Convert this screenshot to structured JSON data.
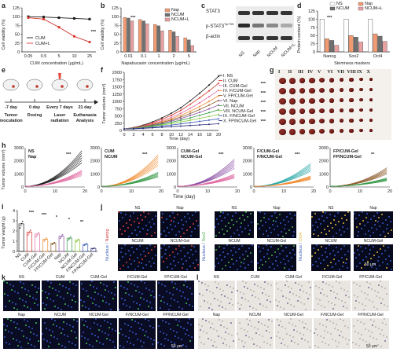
{
  "panel_letters": {
    "a": "a",
    "b": "b",
    "c": "c",
    "d": "d",
    "e": "e",
    "f": "f",
    "g": "g",
    "h": "h",
    "i": "i",
    "j": "j",
    "k": "k",
    "l": "l"
  },
  "colors": {
    "black": "#1a1a1a",
    "red": "#d9342b",
    "nap": "#f29a72",
    "ncum": "#6f6f6f",
    "ncuml": "#e8a0a0",
    "ns": "#ffffff",
    "green": "#3a9a4a",
    "teal": "#2aa7a7",
    "purple": "#8a4fa3",
    "blue": "#3b5bb5",
    "pink": "#e06aa0",
    "orange": "#f08a2e",
    "lightgreen": "#8cc63f",
    "navy": "#2b2b7a",
    "brown": "#8b5a2b"
  },
  "panel_a": {
    "chart_data": {
      "type": "line",
      "xlabel": "CUM concentration (μg/mL)",
      "ylabel": "Cell viability (%)",
      "categories": [
        "0.05",
        "0.5",
        "5",
        "10",
        "25"
      ],
      "ylim": [
        0,
        125
      ],
      "yticks": [
        "0",
        "25",
        "50",
        "75",
        "100",
        "125"
      ],
      "series": [
        {
          "name": "CUM",
          "values": [
            100,
            99,
            97,
            95,
            93
          ]
        },
        {
          "name": "CUM+L",
          "values": [
            97,
            93,
            70,
            44,
            28
          ]
        }
      ],
      "legend": "bottom-left",
      "significance": "***"
    }
  },
  "panel_b": {
    "chart_data": {
      "type": "bar",
      "xlabel": "Napabucasin concentration (μg/mL)",
      "ylabel": "Cell viability (%)",
      "categories": [
        "0.01",
        "0.1",
        "1",
        "2",
        "5"
      ],
      "ylim": [
        0,
        125
      ],
      "yticks": [
        "0",
        "25",
        "50",
        "75",
        "100",
        "125"
      ],
      "series": [
        {
          "name": "Nap",
          "values": [
            98,
            92,
            78,
            62,
            40
          ]
        },
        {
          "name": "NCUM",
          "values": [
            96,
            88,
            74,
            57,
            34
          ]
        },
        {
          "name": "NCUM+L",
          "values": [
            88,
            80,
            60,
            44,
            18
          ]
        }
      ],
      "legend": "top-right",
      "significance": "***"
    }
  },
  "panel_c": {
    "rows": [
      "STAT3",
      "p-STAT3",
      "β-actin"
    ],
    "row2_sup": "Tyr705",
    "cols": [
      "NS",
      "Nap",
      "NCUM",
      "NCUM+L"
    ]
  },
  "panel_d": {
    "chart_data": {
      "type": "bar",
      "xlabel": "Stemness markers",
      "ylabel": "Protein content (%)",
      "categories": [
        "Nanog",
        "Sox2",
        "Oct4"
      ],
      "ylim": [
        0,
        125
      ],
      "yticks": [
        "0",
        "25",
        "50",
        "75",
        "100",
        "125"
      ],
      "series": [
        {
          "name": "NS",
          "values": [
            100,
            100,
            100
          ]
        },
        {
          "name": "Nap",
          "values": [
            40,
            50,
            55
          ]
        },
        {
          "name": "NCUM",
          "values": [
            35,
            45,
            48
          ]
        },
        {
          "name": "NCUM+L",
          "values": [
            20,
            30,
            32
          ]
        }
      ],
      "legend": "top",
      "significance": "***"
    }
  },
  "panel_e": {
    "days": [
      "-7 day",
      "0 day",
      "Every 7 days",
      "21 day"
    ],
    "steps": [
      "Tumor\ninoculation",
      "Dosing",
      "Laser\nradiation",
      "Euthanasia\nAnalysis"
    ]
  },
  "panel_f": {
    "chart_data": {
      "type": "line",
      "xlabel": "Time (day)",
      "ylabel": "Tumor volume (mm³)",
      "x": [
        0,
        2,
        4,
        6,
        8,
        10,
        12,
        14,
        16,
        18,
        20
      ],
      "ylim": [
        0,
        2000
      ],
      "yticks": [
        "0",
        "250",
        "500",
        "750",
        "1000",
        "1250",
        "1500",
        "1750",
        "2000"
      ],
      "xticks": [
        "0",
        "2",
        "4",
        "6",
        "8",
        "10",
        "12",
        "14",
        "16",
        "18",
        "20"
      ],
      "series": [
        {
          "name": "I. NS",
          "values": [
            50,
            100,
            180,
            290,
            430,
            590,
            780,
            1020,
            1280,
            1560,
            1860
          ]
        },
        {
          "name": "II. CUM",
          "values": [
            50,
            95,
            160,
            260,
            380,
            520,
            690,
            900,
            1120,
            1360,
            1620
          ]
        },
        {
          "name": "III. CUM-Gel",
          "values": [
            50,
            90,
            150,
            230,
            330,
            450,
            590,
            760,
            950,
            1160,
            1380
          ]
        },
        {
          "name": "IV. F/CUM-Gel",
          "values": [
            50,
            85,
            140,
            210,
            300,
            400,
            520,
            660,
            820,
            1000,
            1190
          ]
        },
        {
          "name": "V. FP/CUM-Gel",
          "values": [
            50,
            80,
            130,
            195,
            270,
            360,
            460,
            580,
            720,
            870,
            1030
          ]
        },
        {
          "name": "VI. Nap",
          "values": [
            50,
            75,
            120,
            175,
            240,
            320,
            410,
            510,
            620,
            740,
            870
          ]
        },
        {
          "name": "VII. NCUM",
          "values": [
            50,
            70,
            110,
            160,
            215,
            280,
            350,
            430,
            520,
            610,
            710
          ]
        },
        {
          "name": "VIII. NCUM-Gel",
          "values": [
            50,
            65,
            100,
            140,
            185,
            235,
            290,
            350,
            415,
            480,
            550
          ]
        },
        {
          "name": "IX. F/NCUM-Gel",
          "values": [
            50,
            60,
            85,
            115,
            150,
            185,
            225,
            265,
            310,
            355,
            400
          ]
        },
        {
          "name": "X. FP/NCUM-Gel",
          "values": [
            50,
            55,
            70,
            90,
            110,
            130,
            150,
            170,
            190,
            210,
            230
          ]
        }
      ],
      "significance": [
        "***",
        "***",
        "***",
        "***",
        "***"
      ]
    }
  },
  "panel_g": {
    "roman": [
      "I",
      "II",
      "III",
      "IV",
      "V",
      "VI",
      "VII",
      "VIII",
      "IX",
      "X"
    ],
    "rows": 6
  },
  "panel_h": {
    "xlabel": "Time (day)",
    "ylabel": "Tumor volume (mm³)",
    "yticks": [
      "0",
      "1000",
      "2000",
      "3000"
    ],
    "xticks": [
      "0",
      "10",
      "20"
    ],
    "subplots": [
      {
        "label_a": "NS",
        "label_b": "Nap",
        "sig": "***"
      },
      {
        "label_a": "CUM",
        "label_b": "NCUM",
        "sig": "***"
      },
      {
        "label_a": "CUM-Gel",
        "label_b": "NCUM-Gel",
        "sig": "***"
      },
      {
        "label_a": "F/CUM-Gel",
        "label_b": "F/NCUM-Gel",
        "sig": "***"
      },
      {
        "label_a": "FP/CUM-Gel",
        "label_b": "FP/NCUM-Gel",
        "sig": "**"
      }
    ]
  },
  "panel_i": {
    "chart_data": {
      "type": "bar",
      "ylabel": "Tumor weight (g)",
      "ylim": [
        0,
        4
      ],
      "yticks": [
        "0",
        "1",
        "2",
        "3",
        "4"
      ],
      "categories": [
        "NS",
        "CUM",
        "CUM-Gel",
        "F/CUM-Gel",
        "FP/CUM-Gel",
        "Nap",
        "NCUM",
        "NCUM-Gel",
        "F/NCUM-Gel",
        "FP/NCUM-Gel"
      ],
      "values": [
        2.7,
        1.9,
        1.7,
        1.2,
        0.8,
        1.5,
        1.3,
        1.1,
        0.7,
        0.3
      ],
      "significance": [
        "***",
        "***",
        "*",
        "*",
        "**"
      ]
    }
  },
  "panel_j": {
    "groups": [
      {
        "marker": "Nanog",
        "side": "Nucleus /",
        "cells": [
          "NS",
          "Nap",
          "NCUM",
          "NCUM-Gel"
        ]
      },
      {
        "marker": "Sox2",
        "side": "Nucleus /",
        "cells": [
          "NS",
          "Nap",
          "NCUM",
          "NCUM-Gel"
        ]
      },
      {
        "marker": "Oct4",
        "side": "Nucleus /",
        "cells": [
          "NS",
          "Nap",
          "NCUM",
          "NCUM-Gel"
        ]
      }
    ],
    "scale": "50 μm"
  },
  "panel_k": {
    "top": [
      "NS",
      "CUM",
      "CUM-Gel",
      "F/CUM-Gel",
      "FP/CUM-Gel"
    ],
    "bottom": [
      "Nap",
      "NCUM",
      "NCUM-Gel",
      "F/NCUM-Gel",
      "FP/NCUM-Gel"
    ],
    "scale": "50 μm"
  },
  "panel_l": {
    "top": [
      "NS",
      "CUM",
      "CUM-Gel",
      "F/CUM-Gel",
      "FP/CUM-Gel"
    ],
    "bottom": [
      "Nap",
      "NCUM",
      "NCUM-Gel",
      "F/NCUM-Gel",
      "FP/NCUM-Gel"
    ],
    "scale": "50 μm"
  }
}
